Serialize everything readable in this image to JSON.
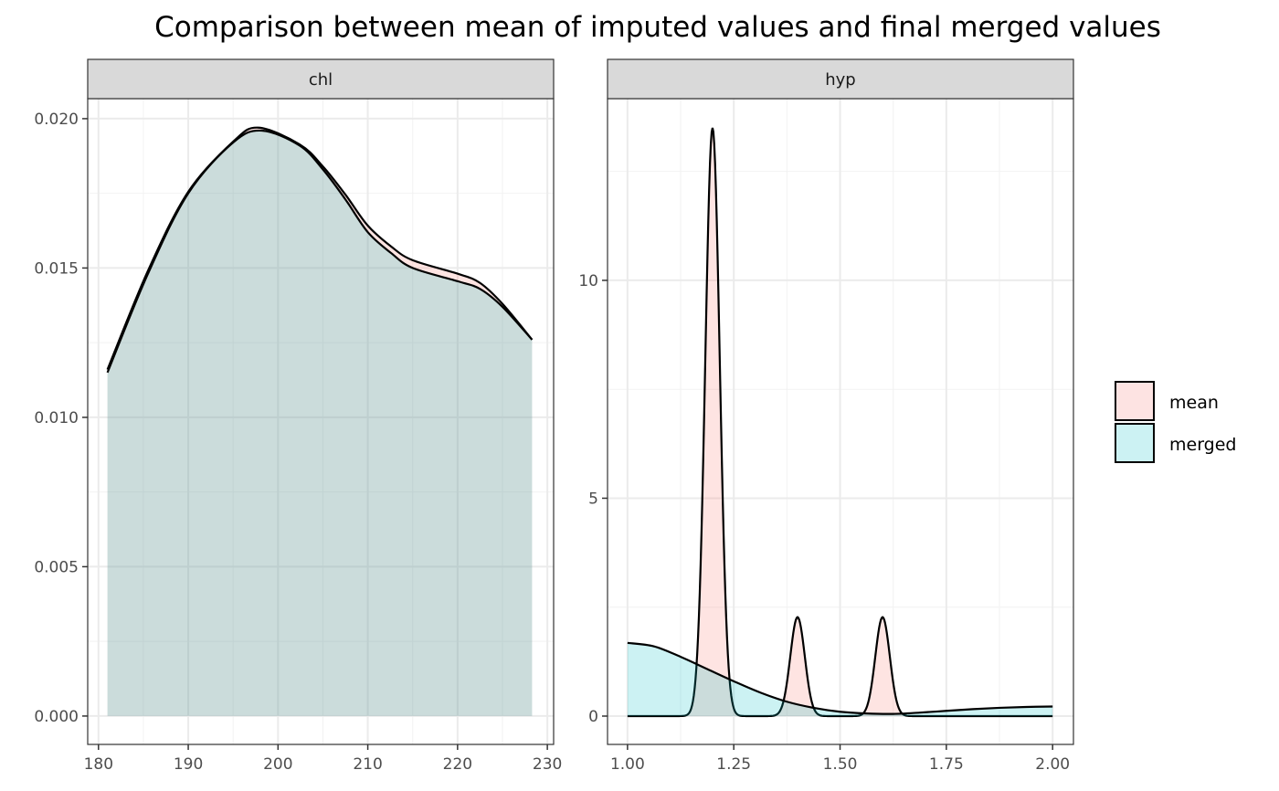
{
  "chart_data": {
    "type": "area",
    "title": "Comparison between mean of imputed values and final merged values",
    "legend": {
      "placement": "right",
      "entries": [
        "mean",
        "merged"
      ]
    },
    "colors": {
      "mean": "#F8766D",
      "merged": "#00BFC4",
      "fill_alpha": 0.2,
      "strip_bg": "#d9d9d9"
    },
    "panels": [
      {
        "name": "chl",
        "xlim": [
          178.8,
          230.7
        ],
        "ylim": [
          -0.00095,
          0.02067
        ],
        "x_ticks": [
          180,
          190,
          200,
          210,
          220,
          230
        ],
        "x_tick_labels": [
          "180",
          "190",
          "200",
          "210",
          "220",
          "230"
        ],
        "y_ticks": [
          0,
          0.005,
          0.01,
          0.015,
          0.02
        ],
        "y_tick_labels": [
          "0.000",
          "0.005",
          "0.010",
          "0.015",
          "0.020"
        ],
        "series": [
          {
            "name": "mean",
            "x": [
              181,
              185.5,
              190,
              195,
              197.8,
              202.4,
              205,
              207.5,
              210,
              212.6,
              215,
              220.1,
              222.5,
              225,
              228.3
            ],
            "y": [
              0.0116,
              0.0149,
              0.01755,
              0.01923,
              0.0197,
              0.01914,
              0.0184,
              0.01746,
              0.01642,
              0.01572,
              0.01526,
              0.0148,
              0.0145,
              0.0138,
              0.0126
            ]
          },
          {
            "name": "merged",
            "x": [
              181,
              185.5,
              190,
              195,
              198.2,
              202.4,
              205,
              207.5,
              210,
              212.6,
              215,
              220.1,
              222.5,
              225,
              228.3
            ],
            "y": [
              0.0115,
              0.0148,
              0.0175,
              0.0192,
              0.0196,
              0.0191,
              0.0183,
              0.0173,
              0.0162,
              0.0155,
              0.015,
              0.01455,
              0.0143,
              0.0137,
              0.0126
            ]
          }
        ]
      },
      {
        "name": "hyp",
        "xlim": [
          0.953,
          2.049
        ],
        "ylim": [
          -0.65,
          14.17
        ],
        "x_ticks": [
          1.0,
          1.25,
          1.5,
          1.75,
          2.0
        ],
        "x_tick_labels": [
          "1.00",
          "1.25",
          "1.50",
          "1.75",
          "2.00"
        ],
        "y_ticks": [
          0,
          5,
          10
        ],
        "y_tick_labels": [
          "0",
          "5",
          "10"
        ],
        "series": [
          {
            "name": "mean",
            "x_range": [
              1.0,
              2.0
            ],
            "peaks": [
              {
                "center": 1.2,
                "height": 13.5,
                "sd": 0.017
              },
              {
                "center": 1.4,
                "height": 2.27,
                "sd": 0.017
              },
              {
                "center": 1.6,
                "height": 2.27,
                "sd": 0.017
              }
            ]
          },
          {
            "name": "merged",
            "x": [
              1.0,
              1.0625,
              1.125,
              1.1875,
              1.25,
              1.3125,
              1.375,
              1.4375,
              1.5,
              1.5625,
              1.625,
              1.6875,
              1.75,
              1.8125,
              1.875,
              1.9375,
              2.0
            ],
            "y": [
              1.68,
              1.6,
              1.36,
              1.08,
              0.8,
              0.54,
              0.33,
              0.19,
              0.1,
              0.06,
              0.05,
              0.08,
              0.12,
              0.16,
              0.19,
              0.21,
              0.22
            ]
          }
        ]
      }
    ]
  }
}
